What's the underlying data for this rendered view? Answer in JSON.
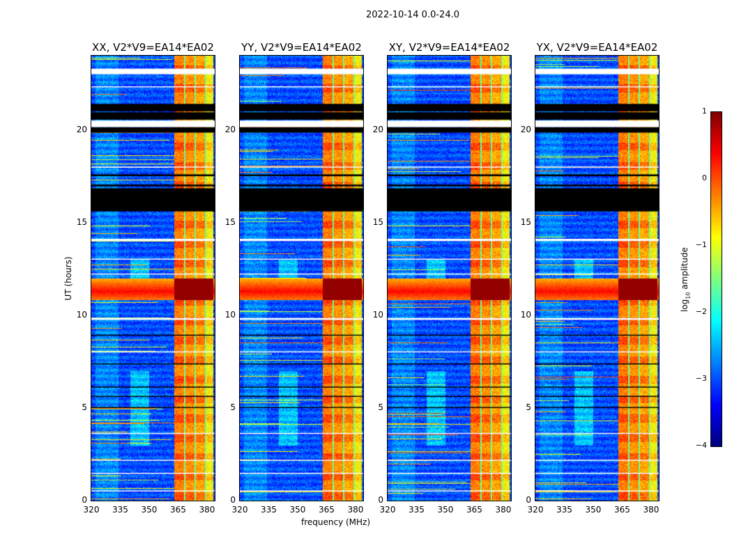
{
  "figure_title": "2022-10-14 0.0-24.0",
  "chart_data": [
    {
      "type": "heatmap",
      "panels": [
        {
          "title": "XX, V2*V9=EA14*EA02"
        },
        {
          "title": "YY, V2*V9=EA14*EA02"
        },
        {
          "title": "XY, V2*V9=EA14*EA02"
        },
        {
          "title": "YX, V2*V9=EA14*EA02"
        }
      ],
      "xlabel": "frequency (MHz)",
      "ylabel": "UT (hours)",
      "xlim": [
        320,
        384
      ],
      "ylim": [
        0,
        24
      ],
      "xticks": [
        "320",
        "335",
        "350",
        "365",
        "380"
      ],
      "xtick_values": [
        320,
        335,
        350,
        365,
        380
      ],
      "yticks": [
        "0",
        "5",
        "10",
        "15",
        "20"
      ],
      "ytick_values": [
        0,
        5,
        10,
        15,
        20
      ],
      "colormap": "jet",
      "background_log10_amplitude": -3.0,
      "rfi_subbands_mhz": [
        [
          363,
          368,
          0.0
        ],
        [
          368.8,
          373.5,
          -0.1
        ],
        [
          374.2,
          378.6,
          -0.2
        ],
        [
          379.3,
          383,
          -0.6
        ]
      ],
      "strong_rfi_hours": [
        10.85,
        12.0
      ],
      "flagged_black_hours": [
        [
          21.0,
          21.4
        ],
        [
          20.55,
          20.95
        ],
        [
          19.85,
          20.15
        ],
        [
          15.6,
          16.85
        ],
        [
          16.95,
          17.05
        ],
        [
          17.5,
          17.6
        ],
        [
          5.0,
          5.05
        ],
        [
          7.35,
          7.4
        ],
        [
          8.9,
          8.95
        ],
        [
          5.6,
          5.65
        ],
        [
          6.1,
          6.15
        ]
      ],
      "flagged_white_hours": [
        [
          23.0,
          23.3
        ],
        [
          20.15,
          20.5
        ],
        [
          14.0,
          14.12
        ],
        [
          9.75,
          9.85
        ],
        [
          3.6,
          3.65
        ],
        [
          1.45,
          1.5
        ],
        [
          0.5,
          0.55
        ],
        [
          22.3,
          22.35
        ],
        [
          18.0,
          18.02
        ],
        [
          13.0,
          13.05
        ],
        [
          12.2,
          12.25
        ],
        [
          8.0,
          8.05
        ],
        [
          2.15,
          2.2
        ]
      ],
      "colorbar": {
        "label": "log10 amplitude",
        "label_main": "log",
        "label_sub": "10",
        "label_rest": " amplitude",
        "range": [
          -4,
          1
        ],
        "ticks": [
          "1",
          "0",
          "−1",
          "−2",
          "−3",
          "−4"
        ],
        "tick_values": [
          1,
          0,
          -1,
          -2,
          -3,
          -4
        ]
      }
    }
  ]
}
